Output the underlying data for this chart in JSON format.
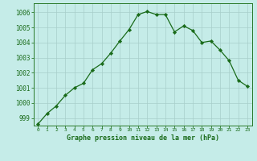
{
  "hours": [
    0,
    1,
    2,
    3,
    4,
    5,
    6,
    7,
    8,
    9,
    10,
    11,
    12,
    13,
    14,
    15,
    16,
    17,
    18,
    19,
    20,
    21,
    22,
    23
  ],
  "pressure": [
    998.6,
    999.3,
    999.8,
    1000.5,
    1001.0,
    1001.3,
    1002.2,
    1002.6,
    1003.3,
    1004.1,
    1004.85,
    1005.85,
    1006.05,
    1005.85,
    1005.85,
    1004.7,
    1005.1,
    1004.8,
    1004.0,
    1004.1,
    1003.5,
    1002.8,
    1001.5,
    1001.1
  ],
  "line_color": "#1a6b1a",
  "marker_color": "#1a6b1a",
  "bg_color": "#c5ece8",
  "grid_color": "#a8ceca",
  "xlabel": "Graphe pression niveau de la mer (hPa)",
  "ylim": [
    998.5,
    1006.6
  ],
  "yticks": [
    999,
    1000,
    1001,
    1002,
    1003,
    1004,
    1005,
    1006
  ],
  "text_color": "#1a6b1a",
  "border_color": "#2a7a2a"
}
